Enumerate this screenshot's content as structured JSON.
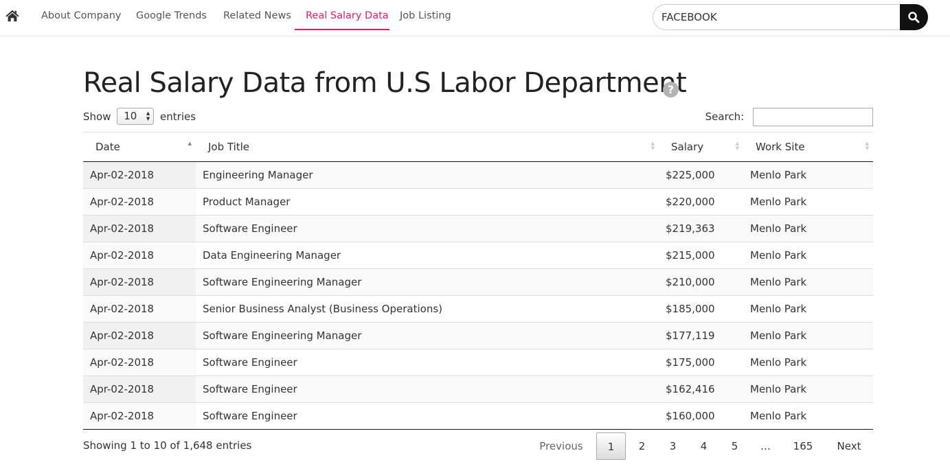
{
  "nav": {
    "tabs": [
      {
        "label": "About Company"
      },
      {
        "label": "Google Trends"
      },
      {
        "label": "Related News"
      },
      {
        "label": "Real Salary Data"
      },
      {
        "label": "Job Listing"
      }
    ],
    "active_tab": "Real Salary Data",
    "search_value": "FACEBOOK",
    "accent_color": "#e5196b"
  },
  "page": {
    "title": "Real Salary Data from U.S Labor Department",
    "help_glyph": "?"
  },
  "controls": {
    "show_label": "Show",
    "entries_value": "10",
    "entries_label": "entries",
    "search_label": "Search:",
    "search_value": ""
  },
  "table": {
    "columns": [
      "Date",
      "Job Title",
      "Salary",
      "Work Site"
    ],
    "sorted_column": "Date",
    "sort_direction": "ascending",
    "rows": [
      {
        "date": "Apr-02-2018",
        "title": "Engineering Manager",
        "salary": "$225,000",
        "site": "Menlo Park"
      },
      {
        "date": "Apr-02-2018",
        "title": "Product Manager",
        "salary": "$220,000",
        "site": "Menlo Park"
      },
      {
        "date": "Apr-02-2018",
        "title": "Software Engineer",
        "salary": "$219,363",
        "site": "Menlo Park"
      },
      {
        "date": "Apr-02-2018",
        "title": "Data Engineering Manager",
        "salary": "$215,000",
        "site": "Menlo Park"
      },
      {
        "date": "Apr-02-2018",
        "title": "Software Engineering Manager",
        "salary": "$210,000",
        "site": "Menlo Park"
      },
      {
        "date": "Apr-02-2018",
        "title": "Senior Business Analyst (Business Operations)",
        "salary": "$185,000",
        "site": "Menlo Park"
      },
      {
        "date": "Apr-02-2018",
        "title": "Software Engineering Manager",
        "salary": "$177,119",
        "site": "Menlo Park"
      },
      {
        "date": "Apr-02-2018",
        "title": "Software Engineer",
        "salary": "$175,000",
        "site": "Menlo Park"
      },
      {
        "date": "Apr-02-2018",
        "title": "Software Engineer",
        "salary": "$162,416",
        "site": "Menlo Park"
      },
      {
        "date": "Apr-02-2018",
        "title": "Software Engineer",
        "salary": "$160,000",
        "site": "Menlo Park"
      }
    ]
  },
  "footer": {
    "info": "Showing 1 to 10 of 1,648 entries",
    "pagination": {
      "previous": "Previous",
      "pages": [
        "1",
        "2",
        "3",
        "4",
        "5",
        "…",
        "165"
      ],
      "current": "1",
      "next": "Next"
    }
  }
}
